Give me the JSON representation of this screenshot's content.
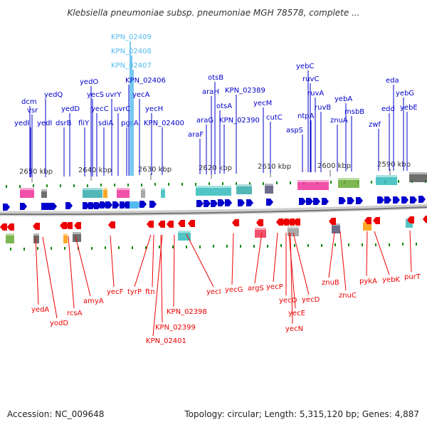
{
  "title": "Klebsiella pneumoniae subsp. pneumoniae MGH 78578, complete ...",
  "footer": {
    "accession": "Accession: NC_009648",
    "summary": "Topology: circular; Length: 5,315,120 bp; Genes: 4,887"
  },
  "colors": {
    "forward": "#0000cc",
    "forward_highlight": "#55bbee",
    "reverse": "#ee0000",
    "backbone": "#888888",
    "tick": "#118811"
  },
  "scale_labels": [
    "2650 kbp",
    "2640 kbp",
    "2630 kbp",
    "2620 kbp",
    "2610 kbp",
    "2600 kbp",
    "2590 kbp"
  ],
  "forward_genes": [
    {
      "name": "yedI",
      "highlight": false
    },
    {
      "name": "dcm",
      "highlight": false
    },
    {
      "name": "vsr",
      "highlight": false
    },
    {
      "name": "yedQ",
      "highlight": false
    },
    {
      "name": "yedI",
      "highlight": false
    },
    {
      "name": "dsrB",
      "highlight": false
    },
    {
      "name": "yedD",
      "highlight": false
    },
    {
      "name": "fliY",
      "highlight": false
    },
    {
      "name": "yedO",
      "highlight": false
    },
    {
      "name": "yecS",
      "highlight": false
    },
    {
      "name": "yecC",
      "highlight": false
    },
    {
      "name": "sdiA",
      "highlight": false
    },
    {
      "name": "uvrY",
      "highlight": false
    },
    {
      "name": "uvrC",
      "highlight": false
    },
    {
      "name": "pgsA",
      "highlight": false
    },
    {
      "name": "KPN_02409",
      "highlight": true
    },
    {
      "name": "KPN_02408",
      "highlight": true
    },
    {
      "name": "KPN_02407",
      "highlight": true
    },
    {
      "name": "KPN_02406",
      "highlight": false
    },
    {
      "name": "yecA",
      "highlight": false
    },
    {
      "name": "yecH",
      "highlight": false
    },
    {
      "name": "KPN_02400",
      "highlight": false
    },
    {
      "name": "araF",
      "highlight": false
    },
    {
      "name": "araG",
      "highlight": false
    },
    {
      "name": "araH",
      "highlight": false
    },
    {
      "name": "otsB",
      "highlight": false
    },
    {
      "name": "otsA",
      "highlight": false
    },
    {
      "name": "KPN_02390",
      "highlight": false
    },
    {
      "name": "KPN_02389",
      "highlight": false
    },
    {
      "name": "yecM",
      "highlight": false
    },
    {
      "name": "cutC",
      "highlight": false
    },
    {
      "name": "aspS",
      "highlight": false
    },
    {
      "name": "yebC",
      "highlight": false
    },
    {
      "name": "ruvC",
      "highlight": false
    },
    {
      "name": "ntpA",
      "highlight": false
    },
    {
      "name": "ruvA",
      "highlight": false
    },
    {
      "name": "ruvB",
      "highlight": false
    },
    {
      "name": "znuA",
      "highlight": false
    },
    {
      "name": "yebA",
      "highlight": false
    },
    {
      "name": "msbB",
      "highlight": false
    },
    {
      "name": "zwf",
      "highlight": false
    },
    {
      "name": "edd",
      "highlight": false
    },
    {
      "name": "eda",
      "highlight": false
    },
    {
      "name": "yebG",
      "highlight": false
    },
    {
      "name": "yebE",
      "highlight": false
    }
  ],
  "reverse_genes": [
    "yedA",
    "yodD",
    "rcsA",
    "amyA",
    "yecF",
    "tyrP",
    "ftn",
    "KPN_02398",
    "KPN_02399",
    "KPN_02401",
    "yecI",
    "yecG",
    "argS",
    "yecP",
    "yecO",
    "yecE",
    "yecN",
    "yecD",
    "znuB",
    "znuC",
    "pykA",
    "yebK",
    "purT"
  ]
}
